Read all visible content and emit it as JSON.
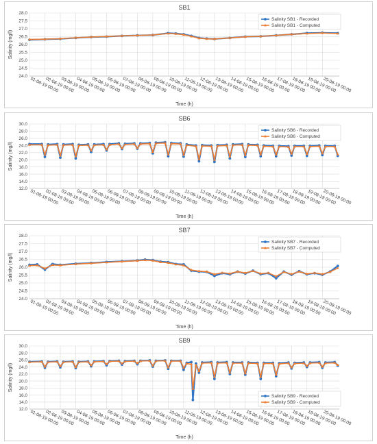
{
  "colors": {
    "recorded": "#2E75C7",
    "computed": "#ED7D31",
    "grid": "#d9d9d9"
  },
  "chart_data": [
    {
      "type": "line",
      "title": "SB1",
      "xlabel": "Time (h)",
      "ylabel": "Salinity (mg/l)",
      "ylim": [
        24.0,
        28.0
      ],
      "yticks": [
        "24.0",
        "24.5",
        "25.0",
        "25.5",
        "26.0",
        "26.5",
        "27.0",
        "27.5",
        "28.0"
      ],
      "xlim": [
        0,
        20.1
      ],
      "xticks": [
        "01-08-19 00:00",
        "02-08-19 00:00",
        "03-08-19 00:00",
        "04-08-19 00:00",
        "05-08-19 00:00",
        "06-08-19 00:00",
        "07-08-19 00:00",
        "08-08-19 00:00",
        "09-08-19 00:00",
        "10-08-19 00:00",
        "11-08-19 00:00",
        "12-08-19 00:00",
        "13-08-19 00:00",
        "14-08-19 00:00",
        "15-08-19 00:00",
        "16-08-19 00:00",
        "17-08-19 00:00",
        "18-08-19 00:00",
        "19-08-19 00:00",
        "20-08-19 00:00"
      ],
      "legend_position": "top-right",
      "x": [
        0,
        1,
        2,
        3,
        4,
        5,
        6,
        7,
        8,
        9,
        9.5,
        10,
        10.5,
        11,
        11.5,
        12,
        13,
        14,
        15,
        16,
        17,
        18,
        19,
        20
      ],
      "series": [
        {
          "name": "Salinity SB1 - Recorded",
          "values": [
            26.3,
            26.33,
            26.36,
            26.42,
            26.47,
            26.5,
            26.55,
            26.58,
            26.6,
            26.72,
            26.7,
            26.65,
            26.55,
            26.42,
            26.38,
            26.35,
            26.42,
            26.5,
            26.52,
            26.58,
            26.65,
            26.72,
            26.75,
            26.72
          ]
        },
        {
          "name": "Salinity SB1 - Computed",
          "values": [
            26.32,
            26.34,
            26.37,
            26.43,
            26.48,
            26.51,
            26.55,
            26.58,
            26.61,
            26.7,
            26.68,
            26.62,
            26.52,
            26.4,
            26.36,
            26.35,
            26.42,
            26.49,
            26.52,
            26.58,
            26.65,
            26.7,
            26.73,
            26.7
          ]
        }
      ]
    },
    {
      "type": "line",
      "title": "SB6",
      "xlabel": "Time (h)",
      "ylabel": "Salinity (mg/l)",
      "ylim": [
        12.0,
        30.0
      ],
      "yticks": [
        "12.0",
        "14.0",
        "16.0",
        "18.0",
        "20.0",
        "22.0",
        "24.0",
        "26.0",
        "28.0",
        "30.0"
      ],
      "xlim": [
        0,
        20.1
      ],
      "xticks": [
        "01-08-19 00:00",
        "02-08-19 00:00",
        "03-08-19 00:00",
        "04-08-19 00:00",
        "05-08-19 00:00",
        "06-08-19 00:00",
        "07-08-19 00:00",
        "08-08-19 00:00",
        "09-08-19 00:00",
        "10-08-19 00:00",
        "11-08-19 00:00",
        "12-08-19 00:00",
        "13-08-19 00:00",
        "14-08-19 00:00",
        "15-08-19 00:00",
        "16-08-19 00:00",
        "17-08-19 00:00",
        "18-08-19 00:00",
        "19-08-19 00:00",
        "20-08-19 00:00"
      ],
      "legend_position": "top-right",
      "x": [
        0,
        0.8,
        1.0,
        1.2,
        1.8,
        2.0,
        2.2,
        2.8,
        3.0,
        3.2,
        3.8,
        4.0,
        4.2,
        4.8,
        5.0,
        5.2,
        5.8,
        6.0,
        6.2,
        6.8,
        7.0,
        7.2,
        7.8,
        8.0,
        8.2,
        8.8,
        9.0,
        9.2,
        9.8,
        10.0,
        10.2,
        10.8,
        11.0,
        11.2,
        11.8,
        12.0,
        12.2,
        12.8,
        13.0,
        13.2,
        13.8,
        14.0,
        14.2,
        14.8,
        15.0,
        15.2,
        15.8,
        16.0,
        16.2,
        16.8,
        17.0,
        17.2,
        17.8,
        18.0,
        18.2,
        18.8,
        19.0,
        19.2,
        19.8,
        20.0
      ],
      "series": [
        {
          "name": "Salinity SB6 - Recorded",
          "values": [
            24.4,
            24.4,
            20.8,
            24.3,
            24.4,
            20.6,
            24.3,
            24.4,
            20.4,
            24.2,
            24.3,
            22.2,
            24.3,
            24.4,
            22.6,
            24.4,
            24.6,
            23.0,
            24.5,
            24.6,
            23.1,
            24.6,
            24.7,
            21.8,
            24.8,
            24.9,
            21.0,
            24.7,
            24.6,
            20.9,
            24.3,
            24.0,
            19.6,
            24.1,
            24.0,
            19.4,
            24.1,
            24.2,
            20.4,
            24.3,
            24.4,
            20.8,
            24.3,
            24.2,
            21.0,
            24.0,
            23.9,
            21.0,
            23.9,
            23.8,
            21.2,
            23.9,
            23.9,
            21.1,
            23.9,
            24.0,
            21.3,
            23.9,
            23.9,
            21.1
          ]
        },
        {
          "name": "Salinity SB6 - Computed",
          "values": [
            24.2,
            24.2,
            21.4,
            24.1,
            24.2,
            21.2,
            24.1,
            24.2,
            21.0,
            24.0,
            24.1,
            22.6,
            24.1,
            24.2,
            22.9,
            24.2,
            24.4,
            23.2,
            24.3,
            24.4,
            23.3,
            24.4,
            24.5,
            22.2,
            24.6,
            24.7,
            21.5,
            24.5,
            24.4,
            21.4,
            24.1,
            23.8,
            20.2,
            23.9,
            23.8,
            20.0,
            23.9,
            24.0,
            20.9,
            24.1,
            24.2,
            21.3,
            24.1,
            24.0,
            21.5,
            23.8,
            23.7,
            21.5,
            23.7,
            23.6,
            21.7,
            23.7,
            23.7,
            21.6,
            23.7,
            23.8,
            21.8,
            23.7,
            23.7,
            21.5
          ]
        }
      ]
    },
    {
      "type": "line",
      "title": "SB7",
      "xlabel": "Time (h)",
      "ylabel": "Salinity (mg/l)",
      "ylim": [
        24.0,
        28.0
      ],
      "yticks": [
        "24.0",
        "24.5",
        "25.0",
        "25.5",
        "26.0",
        "26.5",
        "27.0",
        "27.5",
        "28.0"
      ],
      "xlim": [
        0,
        20.1
      ],
      "xticks": [
        "01-08-19 00:00",
        "02-08-19 00:00",
        "03-08-19 00:00",
        "04-08-19 00:00",
        "05-08-19 00:00",
        "06-08-19 00:00",
        "07-08-19 00:00",
        "08-08-19 00:00",
        "09-08-19 00:00",
        "10-08-19 00:00",
        "11-08-19 00:00",
        "12-08-19 00:00",
        "13-08-19 00:00",
        "14-08-19 00:00",
        "15-08-19 00:00",
        "16-08-19 00:00",
        "17-08-19 00:00",
        "18-08-19 00:00",
        "19-08-19 00:00",
        "20-08-19 00:00"
      ],
      "legend_position": "top-right",
      "x": [
        0,
        0.5,
        1.0,
        1.5,
        2,
        3,
        4,
        5,
        6,
        7,
        7.5,
        8,
        8.5,
        9,
        9.5,
        10,
        10.5,
        11,
        11.5,
        12,
        12.5,
        13,
        13.5,
        14,
        14.5,
        15,
        15.5,
        16,
        16.5,
        17,
        17.5,
        18,
        18.5,
        19,
        19.5,
        20
      ],
      "series": [
        {
          "name": "Salinity SB7 - Recorded",
          "values": [
            26.15,
            26.18,
            25.85,
            26.2,
            26.15,
            26.22,
            26.27,
            26.33,
            26.38,
            26.43,
            26.48,
            26.45,
            26.35,
            26.32,
            26.2,
            26.18,
            25.78,
            25.72,
            25.7,
            25.45,
            25.62,
            25.55,
            25.72,
            25.6,
            25.78,
            25.55,
            25.62,
            25.3,
            25.72,
            25.52,
            25.75,
            25.55,
            25.62,
            25.52,
            25.72,
            26.08
          ]
        },
        {
          "name": "Salinity SB7 - Computed",
          "values": [
            26.1,
            26.12,
            25.92,
            26.14,
            26.12,
            26.2,
            26.25,
            26.31,
            26.36,
            26.41,
            26.45,
            26.42,
            26.32,
            26.28,
            26.18,
            26.12,
            25.82,
            25.75,
            25.72,
            25.55,
            25.65,
            25.6,
            25.72,
            25.64,
            25.76,
            25.6,
            25.64,
            25.42,
            25.7,
            25.56,
            25.72,
            25.58,
            25.64,
            25.56,
            25.7,
            25.95
          ]
        }
      ]
    },
    {
      "type": "line",
      "title": "SB9",
      "xlabel": "Time (h)",
      "ylabel": "Salinity (mg/l)",
      "ylim": [
        12.0,
        30.0
      ],
      "yticks": [
        "12.0",
        "14.0",
        "16.0",
        "18.0",
        "20.0",
        "22.0",
        "24.0",
        "26.0",
        "28.0",
        "30.0"
      ],
      "xlim": [
        0,
        20.1
      ],
      "xticks": [
        "01-08-19 00:00",
        "02-08-19 00:00",
        "03-08-19 00:00",
        "04-08-19 00:00",
        "05-08-19 00:00",
        "06-08-19 00:00",
        "07-08-19 00:00",
        "08-08-19 00:00",
        "09-08-19 00:00",
        "10-08-19 00:00",
        "11-08-19 00:00",
        "12-08-19 00:00",
        "13-08-19 00:00",
        "14-08-19 00:00",
        "15-08-19 00:00",
        "16-08-19 00:00",
        "17-08-19 00:00",
        "18-08-19 00:00",
        "19-08-19 00:00",
        "20-08-19 00:00"
      ],
      "legend_position": "bottom-right",
      "x": [
        0,
        0.8,
        1.0,
        1.2,
        1.8,
        2.0,
        2.2,
        2.8,
        3.0,
        3.2,
        3.8,
        4.0,
        4.2,
        4.8,
        5.0,
        5.2,
        5.8,
        6.0,
        6.2,
        6.8,
        7.0,
        7.2,
        7.8,
        8.0,
        8.2,
        8.8,
        9.0,
        9.2,
        9.8,
        10.0,
        10.2,
        10.5,
        10.6,
        10.8,
        11.0,
        11.2,
        11.8,
        12.0,
        12.2,
        12.8,
        13.0,
        13.2,
        13.8,
        14.0,
        14.2,
        14.8,
        15.0,
        15.2,
        15.8,
        16.0,
        16.2,
        16.8,
        17.0,
        17.2,
        17.8,
        18.0,
        18.2,
        18.8,
        19.0,
        19.2,
        19.8,
        20.0
      ],
      "series": [
        {
          "name": "Salinity SB9 - Recorded",
          "values": [
            25.5,
            25.6,
            23.8,
            25.5,
            25.6,
            23.9,
            25.5,
            25.6,
            23.7,
            25.5,
            25.6,
            24.2,
            25.6,
            25.7,
            24.5,
            25.7,
            25.8,
            24.7,
            25.7,
            25.8,
            24.8,
            25.8,
            25.9,
            24.1,
            25.8,
            25.9,
            23.5,
            25.8,
            25.8,
            23.2,
            25.2,
            25.4,
            14.6,
            25.0,
            22.4,
            25.3,
            25.4,
            20.6,
            25.3,
            25.4,
            22.0,
            25.3,
            25.3,
            21.8,
            25.3,
            25.2,
            20.6,
            25.2,
            25.2,
            21.4,
            25.1,
            25.3,
            23.6,
            25.2,
            25.3,
            24.0,
            25.3,
            25.4,
            23.8,
            25.3,
            25.4,
            24.4
          ]
        },
        {
          "name": "Salinity SB9 - Computed",
          "values": [
            25.4,
            25.5,
            24.1,
            25.4,
            25.5,
            24.2,
            25.4,
            25.5,
            24.0,
            25.4,
            25.5,
            24.5,
            25.5,
            25.6,
            24.8,
            25.6,
            25.7,
            25.0,
            25.6,
            25.7,
            25.1,
            25.7,
            25.8,
            24.4,
            25.7,
            25.8,
            23.9,
            25.7,
            25.7,
            23.8,
            25.0,
            24.8,
            17.8,
            24.6,
            22.8,
            25.1,
            25.2,
            21.2,
            25.1,
            25.2,
            22.4,
            25.1,
            25.1,
            22.2,
            25.1,
            25.0,
            21.2,
            25.0,
            25.0,
            21.8,
            24.9,
            25.1,
            23.9,
            25.0,
            25.1,
            24.3,
            25.1,
            25.2,
            24.1,
            25.1,
            25.2,
            24.6
          ]
        }
      ]
    }
  ]
}
